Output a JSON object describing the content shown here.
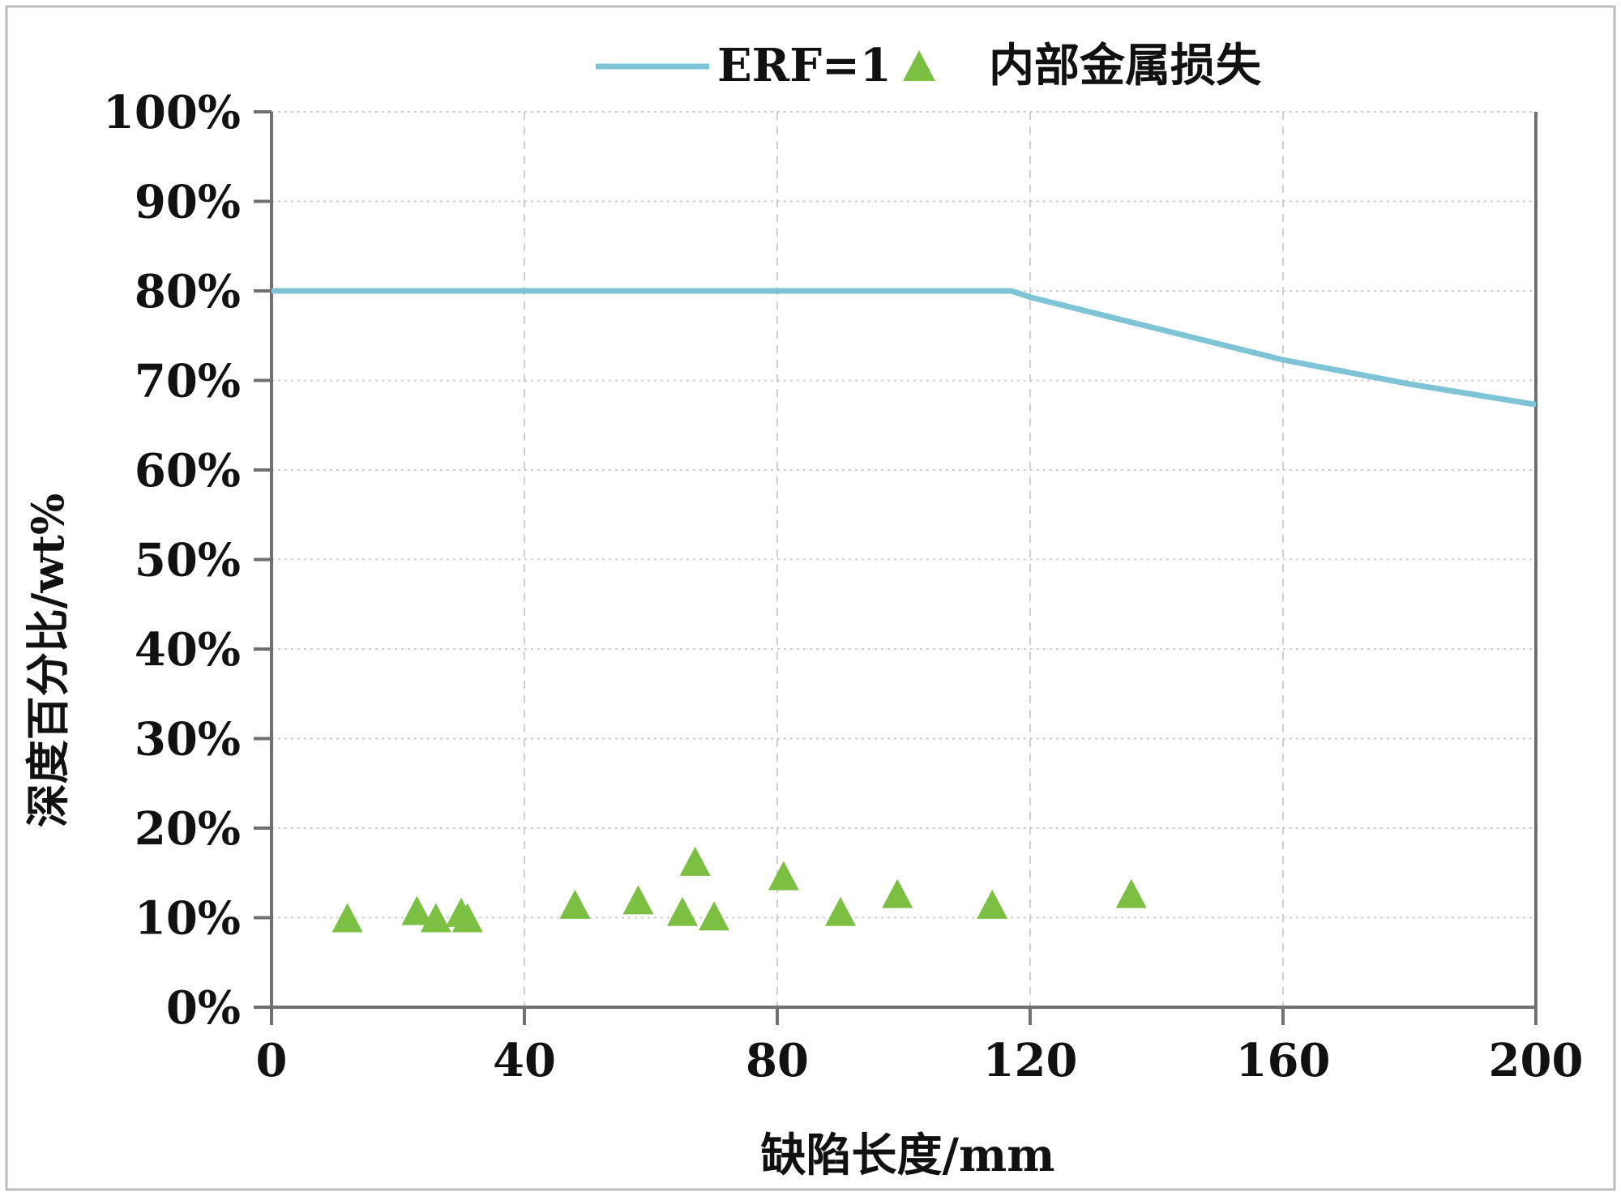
{
  "chart_data": {
    "type": "scatter",
    "title": "",
    "xlabel": "缺陷长度/mm",
    "ylabel": "深度百分比/wt%",
    "xlim": [
      0,
      200
    ],
    "ylim": [
      0,
      100
    ],
    "x_ticks": [
      0,
      40,
      80,
      120,
      160,
      200
    ],
    "x_tick_labels": [
      "0",
      "40",
      "80",
      "120",
      "160",
      "200"
    ],
    "y_ticks": [
      0,
      10,
      20,
      30,
      40,
      50,
      60,
      70,
      80,
      90,
      100
    ],
    "y_tick_labels": [
      "0%",
      "10%",
      "20%",
      "30%",
      "40%",
      "50%",
      "60%",
      "70%",
      "80%",
      "90%",
      "100%"
    ],
    "grid": true,
    "legend_position": "top",
    "series": [
      {
        "name": "ERF=1",
        "kind": "line",
        "color": "#7ec4d6",
        "x": [
          0,
          117,
          120,
          140,
          160,
          180,
          200
        ],
        "y": [
          80,
          80,
          79.3,
          75.8,
          72.3,
          69.6,
          67.3
        ]
      },
      {
        "name": "内部金属损失",
        "kind": "scatter",
        "marker": "triangle",
        "color": "#7bc043",
        "x": [
          12,
          23,
          26,
          30,
          31,
          48,
          58,
          65,
          67,
          70,
          81,
          90,
          99,
          114,
          136
        ],
        "y": [
          10,
          10.8,
          10,
          10.6,
          10,
          11.5,
          12,
          10.7,
          16.3,
          10.2,
          14.7,
          10.7,
          12.7,
          11.5,
          12.7
        ]
      }
    ]
  }
}
